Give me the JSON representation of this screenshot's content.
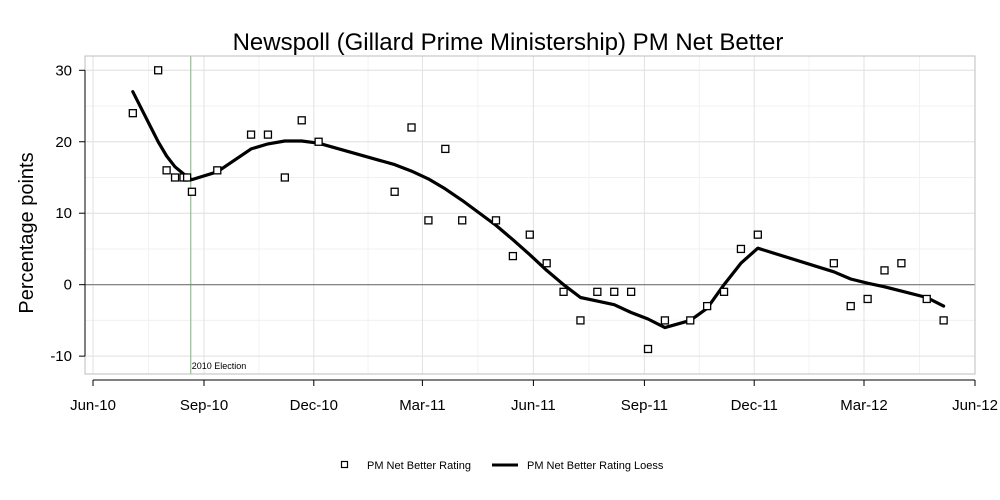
{
  "chart_data": {
    "type": "scatter",
    "title": "Newspoll (Gillard Prime Ministership) PM Net Better",
    "xlabel": "",
    "ylabel": "Percentage points",
    "xlim": [
      "2010-06-01",
      "2012-06-01"
    ],
    "ylim": [
      -12.5,
      32
    ],
    "x_ticks": [
      {
        "date": "2010-06-01",
        "label": "Jun-10"
      },
      {
        "date": "2010-09-01",
        "label": "Sep-10"
      },
      {
        "date": "2010-12-01",
        "label": "Dec-10"
      },
      {
        "date": "2011-03-01",
        "label": "Mar-11"
      },
      {
        "date": "2011-06-01",
        "label": "Jun-11"
      },
      {
        "date": "2011-09-01",
        "label": "Sep-11"
      },
      {
        "date": "2011-12-01",
        "label": "Dec-11"
      },
      {
        "date": "2012-03-01",
        "label": "Mar-12"
      },
      {
        "date": "2012-06-01",
        "label": "Jun-12"
      }
    ],
    "y_ticks": [
      -10,
      0,
      10,
      20,
      30
    ],
    "grid": true,
    "legend_position": "bottom-center",
    "reference_lines": [
      {
        "type": "vertical",
        "date": "2010-08-21",
        "label": "2010 Election",
        "color": "#8fbf8f"
      },
      {
        "type": "horizontal",
        "y": 0,
        "color": "#777777"
      }
    ],
    "series": [
      {
        "name": "PM Net Better Rating",
        "kind": "points",
        "marker": "square",
        "color": "#000000",
        "points": [
          {
            "x": "2010-07-04",
            "y": 24
          },
          {
            "x": "2010-07-25",
            "y": 30
          },
          {
            "x": "2010-08-01",
            "y": 16
          },
          {
            "x": "2010-08-08",
            "y": 15
          },
          {
            "x": "2010-08-15",
            "y": 15
          },
          {
            "x": "2010-08-18",
            "y": 15
          },
          {
            "x": "2010-08-22",
            "y": 13
          },
          {
            "x": "2010-09-12",
            "y": 16
          },
          {
            "x": "2010-10-10",
            "y": 21
          },
          {
            "x": "2010-10-24",
            "y": 21
          },
          {
            "x": "2010-11-07",
            "y": 15
          },
          {
            "x": "2010-11-21",
            "y": 23
          },
          {
            "x": "2010-12-05",
            "y": 20
          },
          {
            "x": "2011-02-06",
            "y": 13
          },
          {
            "x": "2011-02-20",
            "y": 22
          },
          {
            "x": "2011-03-06",
            "y": 9
          },
          {
            "x": "2011-03-20",
            "y": 19
          },
          {
            "x": "2011-04-03",
            "y": 9
          },
          {
            "x": "2011-05-01",
            "y": 9
          },
          {
            "x": "2011-05-15",
            "y": 4
          },
          {
            "x": "2011-05-29",
            "y": 7
          },
          {
            "x": "2011-06-12",
            "y": 3
          },
          {
            "x": "2011-06-26",
            "y": -1
          },
          {
            "x": "2011-07-10",
            "y": -5
          },
          {
            "x": "2011-07-24",
            "y": -1
          },
          {
            "x": "2011-08-07",
            "y": -1
          },
          {
            "x": "2011-08-21",
            "y": -1
          },
          {
            "x": "2011-09-04",
            "y": -9
          },
          {
            "x": "2011-09-18",
            "y": -5
          },
          {
            "x": "2011-10-09",
            "y": -5
          },
          {
            "x": "2011-10-23",
            "y": -3
          },
          {
            "x": "2011-11-06",
            "y": -1
          },
          {
            "x": "2011-11-20",
            "y": 5
          },
          {
            "x": "2011-12-04",
            "y": 7
          },
          {
            "x": "2012-02-05",
            "y": 3
          },
          {
            "x": "2012-02-19",
            "y": -3
          },
          {
            "x": "2012-03-04",
            "y": -2
          },
          {
            "x": "2012-03-18",
            "y": 2
          },
          {
            "x": "2012-04-01",
            "y": 3
          },
          {
            "x": "2012-04-22",
            "y": -2
          },
          {
            "x": "2012-05-06",
            "y": -5
          }
        ]
      },
      {
        "name": "PM Net Better Rating Loess",
        "kind": "line",
        "color": "#000000",
        "points": [
          {
            "x": "2010-07-04",
            "y": 27
          },
          {
            "x": "2010-07-25",
            "y": 20
          },
          {
            "x": "2010-08-01",
            "y": 18
          },
          {
            "x": "2010-08-08",
            "y": 16.5
          },
          {
            "x": "2010-08-15",
            "y": 15.5
          },
          {
            "x": "2010-08-18",
            "y": 15
          },
          {
            "x": "2010-08-22",
            "y": 14.7
          },
          {
            "x": "2010-09-12",
            "y": 15.8
          },
          {
            "x": "2010-10-10",
            "y": 19
          },
          {
            "x": "2010-10-24",
            "y": 19.7
          },
          {
            "x": "2010-11-07",
            "y": 20.1
          },
          {
            "x": "2010-11-21",
            "y": 20.1
          },
          {
            "x": "2010-12-05",
            "y": 19.8
          },
          {
            "x": "2011-02-06",
            "y": 16.8
          },
          {
            "x": "2011-02-20",
            "y": 15.9
          },
          {
            "x": "2011-03-06",
            "y": 14.8
          },
          {
            "x": "2011-03-20",
            "y": 13.4
          },
          {
            "x": "2011-04-03",
            "y": 11.8
          },
          {
            "x": "2011-05-01",
            "y": 8.3
          },
          {
            "x": "2011-05-15",
            "y": 6.3
          },
          {
            "x": "2011-05-29",
            "y": 4.2
          },
          {
            "x": "2011-06-12",
            "y": 2
          },
          {
            "x": "2011-06-26",
            "y": 0
          },
          {
            "x": "2011-07-10",
            "y": -1.8
          },
          {
            "x": "2011-07-24",
            "y": -2.3
          },
          {
            "x": "2011-08-07",
            "y": -2.8
          },
          {
            "x": "2011-08-21",
            "y": -3.9
          },
          {
            "x": "2011-09-04",
            "y": -4.8
          },
          {
            "x": "2011-09-18",
            "y": -6
          },
          {
            "x": "2011-10-09",
            "y": -5
          },
          {
            "x": "2011-10-23",
            "y": -3.3
          },
          {
            "x": "2011-11-06",
            "y": 0
          },
          {
            "x": "2011-11-20",
            "y": 3
          },
          {
            "x": "2011-12-04",
            "y": 5.1
          },
          {
            "x": "2012-02-05",
            "y": 1.8
          },
          {
            "x": "2012-02-19",
            "y": 0.8
          },
          {
            "x": "2012-03-04",
            "y": 0.2
          },
          {
            "x": "2012-03-18",
            "y": -0.3
          },
          {
            "x": "2012-04-01",
            "y": -0.9
          },
          {
            "x": "2012-04-22",
            "y": -1.8
          },
          {
            "x": "2012-05-06",
            "y": -3
          }
        ]
      }
    ]
  }
}
